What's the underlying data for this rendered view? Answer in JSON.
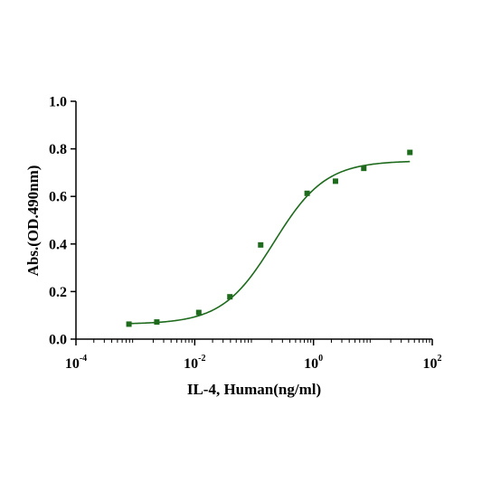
{
  "chart_data": {
    "type": "scatter",
    "xlabel": "IL-4, Human(ng/ml)",
    "ylabel": "Abs.(OD.490nm)",
    "x_scale": "log",
    "xlim": [
      0.0001,
      100
    ],
    "ylim": [
      0,
      1.0
    ],
    "x_ticks": [
      {
        "base": "10",
        "exp": "-4"
      },
      {
        "base": "10",
        "exp": "-2"
      },
      {
        "base": "10",
        "exp": "0"
      },
      {
        "base": "10",
        "exp": "2"
      }
    ],
    "y_ticks": [
      "0.0",
      "0.2",
      "0.4",
      "0.6",
      "0.8",
      "1.0"
    ],
    "grid": false,
    "marker_color": "#1e6b1e",
    "curve_color": "#1e6b1e",
    "series": [
      {
        "x": [
          0.00078,
          0.0023,
          0.0117,
          0.0391,
          0.129,
          0.781,
          2.344,
          7.03,
          42.0
        ],
        "y": [
          0.063,
          0.072,
          0.112,
          0.178,
          0.396,
          0.613,
          0.664,
          0.718,
          0.785
        ]
      }
    ],
    "fit": {
      "model": "4PL",
      "bottom": 0.063,
      "top": 0.75,
      "ec50": 0.215,
      "hill": 1.0,
      "x_range": [
        0.00078,
        42.0
      ]
    }
  }
}
